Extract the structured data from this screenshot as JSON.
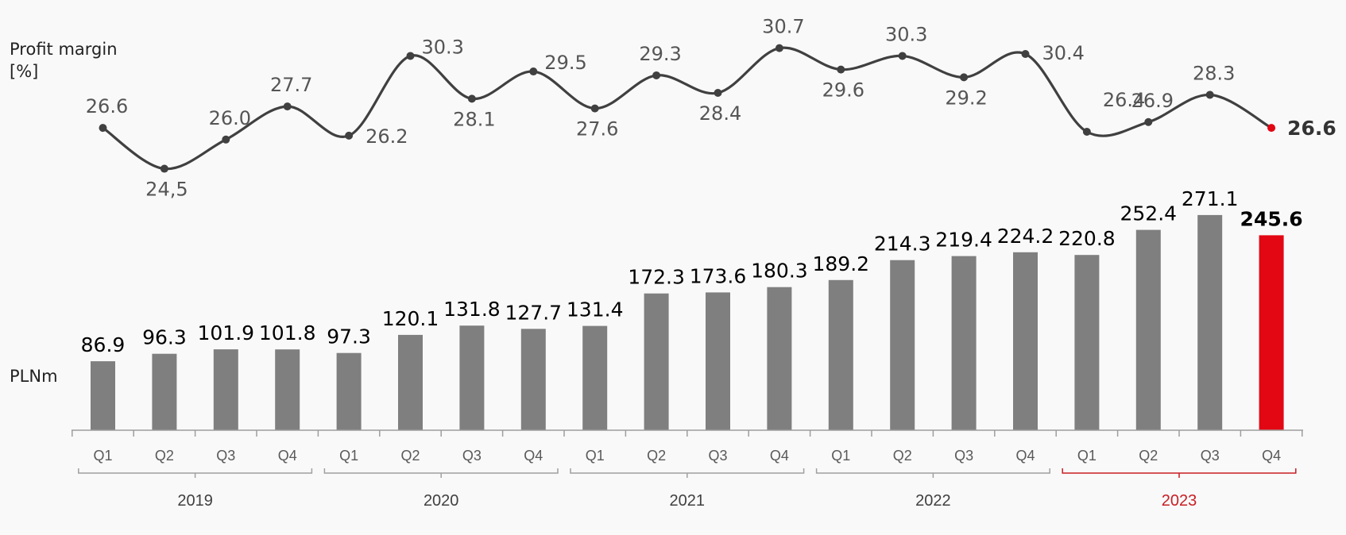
{
  "left_labels": {
    "margin": "Profit margin [%]",
    "unit": "PLNm"
  },
  "colors": {
    "background": "#f9f9f9",
    "bar": "#7f7f7f",
    "highlight": "#e30613",
    "line": "#404040",
    "text": "#000000",
    "muted_text": "#555555",
    "axis": "#9e9e9e",
    "year_highlight": "#c81e23"
  },
  "chart_data": [
    {
      "type": "line",
      "series": [
        {
          "values": [
            26.6,
            24.5,
            26.0,
            27.7,
            26.2,
            30.3,
            28.1,
            29.5,
            27.6,
            29.3,
            28.4,
            30.7,
            29.6,
            30.3,
            29.2,
            30.4,
            26.4,
            26.9,
            28.3,
            26.6
          ]
        }
      ],
      "data_labels": [
        "26.6",
        "24,5",
        "26.0",
        "27.7",
        "26.2",
        "30.3",
        "28.1",
        "29.5",
        "27.6",
        "29.3",
        "28.4",
        "30.7",
        "29.6",
        "30.3",
        "29.2",
        "30.4",
        "26.4",
        "26.9",
        "28.3",
        "26.6"
      ],
      "ylabel": "Profit margin [%]",
      "highlight_last": true
    },
    {
      "type": "bar",
      "categories": [
        "Q1",
        "Q2",
        "Q3",
        "Q4",
        "Q1",
        "Q2",
        "Q3",
        "Q4",
        "Q1",
        "Q2",
        "Q3",
        "Q4",
        "Q1",
        "Q2",
        "Q3",
        "Q4",
        "Q1",
        "Q2",
        "Q3",
        "Q4"
      ],
      "groups": [
        {
          "label": "2019",
          "count": 4
        },
        {
          "label": "2020",
          "count": 4
        },
        {
          "label": "2021",
          "count": 4
        },
        {
          "label": "2022",
          "count": 4
        },
        {
          "label": "2023",
          "count": 4,
          "highlight": true
        }
      ],
      "series": [
        {
          "values": [
            86.9,
            96.3,
            101.9,
            101.8,
            97.3,
            120.1,
            131.8,
            127.7,
            131.4,
            172.3,
            173.6,
            180.3,
            189.2,
            214.3,
            219.4,
            224.2,
            220.8,
            252.4,
            271.1,
            245.6
          ]
        }
      ],
      "ylabel": "PLNm",
      "ylim": [
        0,
        300
      ],
      "highlight_last": true
    }
  ]
}
